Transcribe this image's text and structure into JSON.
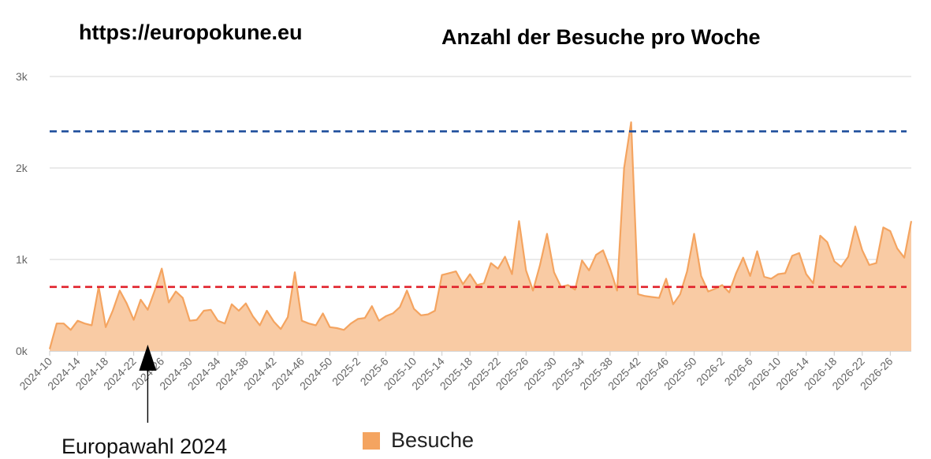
{
  "header": {
    "site_url": "https://europokune.eu"
  },
  "chart_data": {
    "type": "area",
    "title": "Anzahl der Besuche pro Woche",
    "xlabel": "",
    "ylabel": "",
    "ylim": [
      0,
      3000
    ],
    "y_ticks": [
      0,
      1000,
      2000,
      3000
    ],
    "y_tick_labels": [
      "0k",
      "1k",
      "2k",
      "3k"
    ],
    "x_tick_labels": [
      "2024-10",
      "2024-14",
      "2024-18",
      "2024-22",
      "2024-26",
      "2024-30",
      "2024-34",
      "2024-38",
      "2024-42",
      "2024-46",
      "2024-50",
      "2025-2",
      "2025-6",
      "2025-10",
      "2025-14",
      "2025-18",
      "2025-22",
      "2025-26",
      "2025-30",
      "2025-34",
      "2025-38",
      "2025-42",
      "2025-46",
      "2025-50",
      "2026-2",
      "2026-6",
      "2026-10",
      "2026-14",
      "2026-18",
      "2026-22",
      "2026-26"
    ],
    "grid": true,
    "legend_position": "bottom-center",
    "series": [
      {
        "name": "Besuche",
        "color": "#f4a460",
        "fill": "#f9cba4",
        "values": [
          20,
          300,
          300,
          230,
          330,
          300,
          280,
          700,
          260,
          440,
          660,
          520,
          340,
          560,
          450,
          660,
          900,
          530,
          650,
          580,
          330,
          340,
          440,
          450,
          330,
          300,
          510,
          440,
          520,
          380,
          280,
          440,
          320,
          240,
          370,
          860,
          330,
          300,
          280,
          410,
          260,
          250,
          230,
          300,
          350,
          360,
          490,
          330,
          380,
          410,
          480,
          660,
          460,
          390,
          400,
          440,
          830,
          850,
          870,
          730,
          840,
          720,
          740,
          960,
          900,
          1030,
          840,
          1420,
          880,
          660,
          940,
          1280,
          860,
          700,
          720,
          670,
          990,
          880,
          1050,
          1100,
          900,
          660,
          2000,
          2500,
          620,
          600,
          590,
          580,
          790,
          510,
          620,
          870,
          1280,
          820,
          650,
          680,
          720,
          640,
          850,
          1020,
          820,
          1090,
          810,
          790,
          840,
          850,
          1040,
          1070,
          840,
          740,
          1260,
          1190,
          980,
          920,
          1030,
          1360,
          1100,
          940,
          960,
          1350,
          1310,
          1120,
          1020,
          1420
        ]
      }
    ],
    "reference_lines": [
      {
        "value": 2400,
        "color": "#1f4e9c",
        "style": "dashed"
      },
      {
        "value": 700,
        "color": "#e0202a",
        "style": "dashed"
      }
    ],
    "annotation": {
      "text": "Europawahl 2024",
      "week": "2024-24"
    },
    "colors": {
      "grid": "#e3e3e3",
      "tick_text": "#666666"
    }
  }
}
